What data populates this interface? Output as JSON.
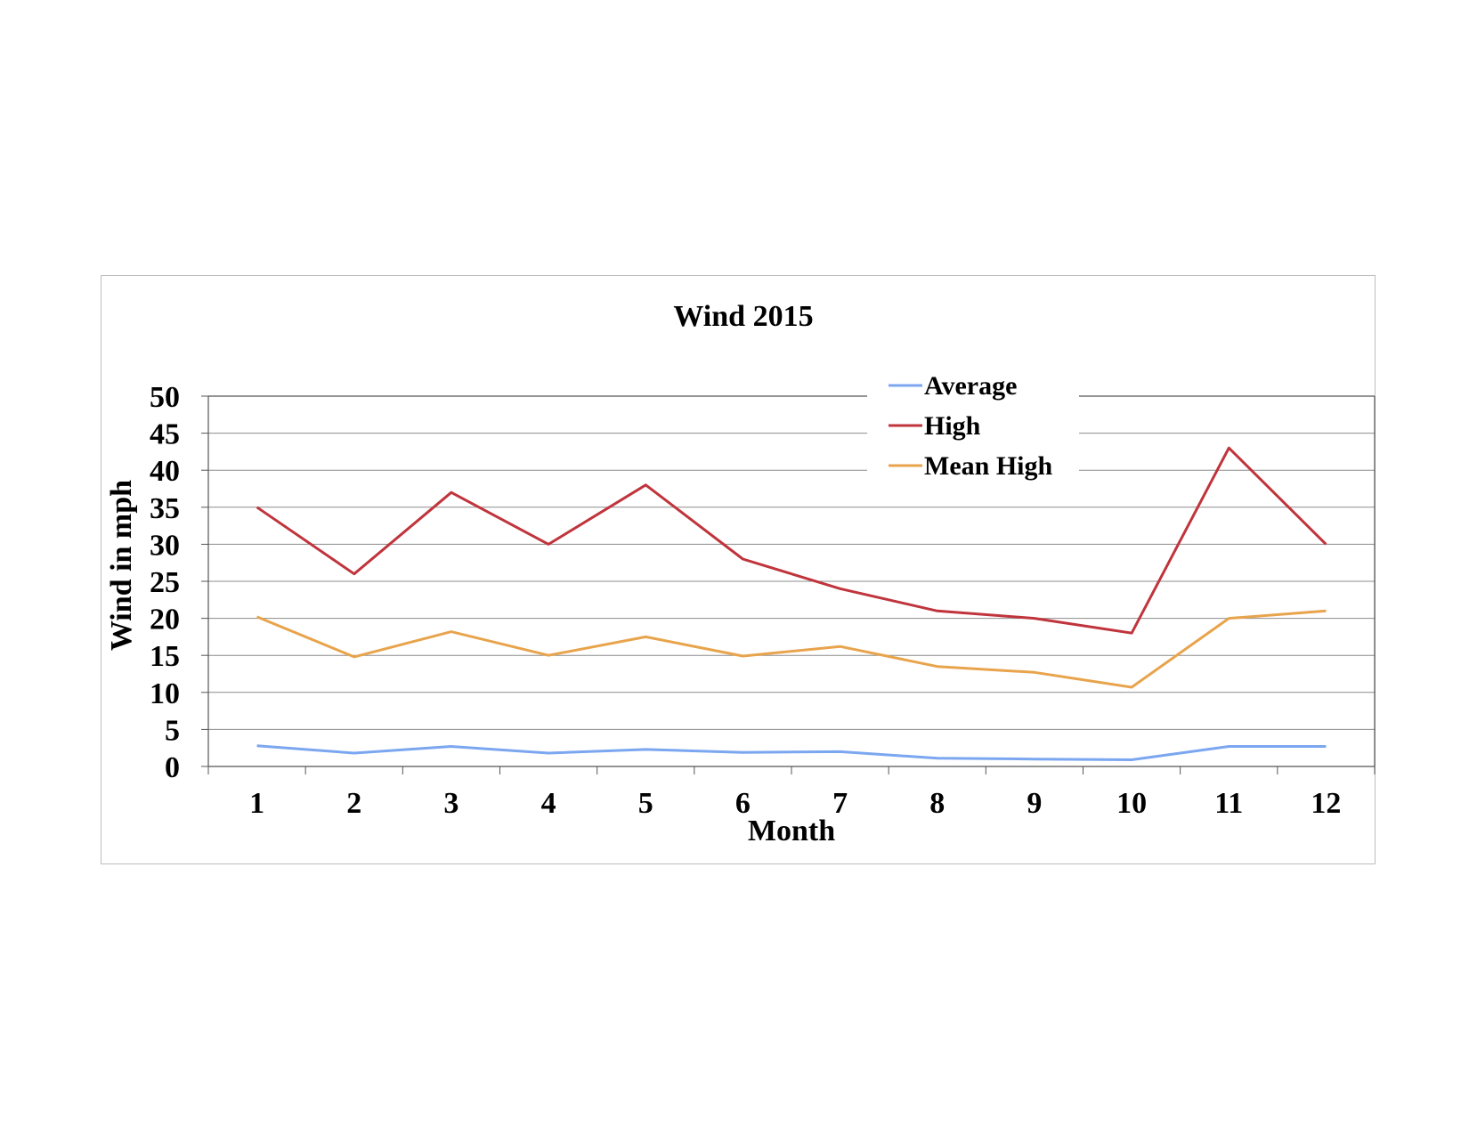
{
  "chart_data": {
    "type": "line",
    "title": "Wind 2015",
    "xlabel": "Month",
    "ylabel": "Wind in mph",
    "x": [
      1,
      2,
      3,
      4,
      5,
      6,
      7,
      8,
      9,
      10,
      11,
      12
    ],
    "x_tick_labels": [
      "1",
      "2",
      "3",
      "4",
      "5",
      "6",
      "7",
      "8",
      "9",
      "10",
      "11",
      "12"
    ],
    "y_ticks": [
      0,
      5,
      10,
      15,
      20,
      25,
      30,
      35,
      40,
      45,
      50
    ],
    "y_tick_labels": [
      "0",
      "5",
      "10",
      "15",
      "20",
      "25",
      "30",
      "35",
      "40",
      "45",
      "50"
    ],
    "ylim": [
      0,
      50
    ],
    "grid": "horizontal",
    "legend_position": "top-right",
    "series": [
      {
        "name": "Average",
        "color": "#7ba6f0",
        "values": [
          2.8,
          1.8,
          2.7,
          1.8,
          2.3,
          1.9,
          2.0,
          1.1,
          1.0,
          0.9,
          2.7,
          2.7
        ]
      },
      {
        "name": "High",
        "color": "#c0343c",
        "values": [
          35,
          26,
          37,
          30,
          38,
          28,
          24,
          21,
          20,
          18,
          43,
          30
        ]
      },
      {
        "name": "Mean High",
        "color": "#e8a44c",
        "values": [
          20.2,
          14.8,
          18.2,
          15.0,
          17.5,
          14.9,
          16.2,
          13.5,
          12.7,
          10.7,
          20.0,
          21.0
        ]
      }
    ]
  }
}
